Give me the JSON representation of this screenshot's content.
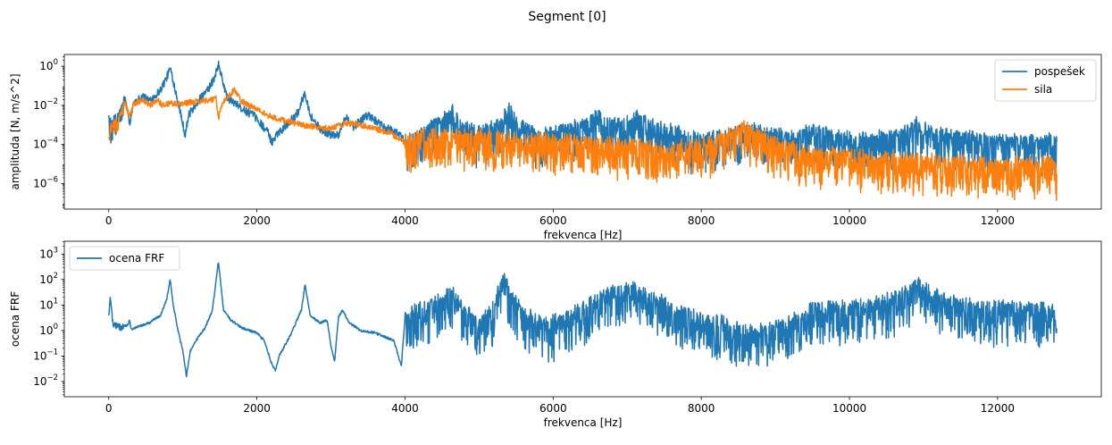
{
  "figure": {
    "suptitle": "Segment [0]"
  },
  "chart_data": [
    {
      "type": "line",
      "xlabel": "frekvenca [Hz]",
      "ylabel": "amplituda [N, m/s^2]",
      "yscale": "log",
      "xlim": [
        -600,
        13400
      ],
      "ylim_exponents": [
        -7.3,
        0.6
      ],
      "xticks": [
        "0",
        "2000",
        "4000",
        "6000",
        "8000",
        "10000",
        "12000"
      ],
      "xtick_values": [
        0,
        2000,
        4000,
        6000,
        8000,
        10000,
        12000
      ],
      "yticks": [
        {
          "base": "10",
          "exp": "0",
          "value_exp": 0
        },
        {
          "base": "10",
          "exp": "−2",
          "value_exp": -2
        },
        {
          "base": "10",
          "exp": "−4",
          "value_exp": -4
        },
        {
          "base": "10",
          "exp": "−6",
          "value_exp": -6
        }
      ],
      "legend_position": "upper right",
      "grid": false,
      "series": [
        {
          "name": "pospešek",
          "color": "#1f77b4",
          "noise_dec": [
            0.7,
            1.2
          ],
          "envelope": [
            [
              0,
              -2.5
            ],
            [
              30,
              -2.9
            ],
            [
              100,
              -2.6
            ],
            [
              160,
              -2.2
            ],
            [
              220,
              -1.6
            ],
            [
              280,
              -2.9
            ],
            [
              340,
              -1.8
            ],
            [
              400,
              -1.7
            ],
            [
              470,
              -1.5
            ],
            [
              520,
              -1.75
            ],
            [
              600,
              -1.6
            ],
            [
              700,
              -1.2
            ],
            [
              780,
              -0.6
            ],
            [
              830,
              -0.1
            ],
            [
              880,
              -0.9
            ],
            [
              960,
              -2.2
            ],
            [
              1030,
              -3.5
            ],
            [
              1080,
              -2.5
            ],
            [
              1200,
              -1.8
            ],
            [
              1320,
              -1.3
            ],
            [
              1420,
              -0.7
            ],
            [
              1480,
              0.1
            ],
            [
              1540,
              -0.8
            ],
            [
              1600,
              -1.6
            ],
            [
              1700,
              -1.9
            ],
            [
              1850,
              -2.3
            ],
            [
              1950,
              -2.5
            ],
            [
              2050,
              -2.9
            ],
            [
              2150,
              -3.4
            ],
            [
              2200,
              -3.9
            ],
            [
              2260,
              -3.5
            ],
            [
              2400,
              -3.0
            ],
            [
              2550,
              -2.4
            ],
            [
              2650,
              -1.3
            ],
            [
              2720,
              -2.5
            ],
            [
              2850,
              -3.2
            ],
            [
              3000,
              -3.5
            ],
            [
              3100,
              -3.5
            ],
            [
              3200,
              -2.6
            ],
            [
              3300,
              -3.1
            ],
            [
              3500,
              -2.5
            ],
            [
              3700,
              -3.1
            ],
            [
              3900,
              -3.4
            ],
            [
              4000,
              -3.9
            ],
            [
              4200,
              -3.5
            ],
            [
              4500,
              -2.8
            ],
            [
              4650,
              -2.3
            ],
            [
              4800,
              -3.0
            ],
            [
              5000,
              -3.4
            ],
            [
              5300,
              -2.9
            ],
            [
              5400,
              -2.2
            ],
            [
              5500,
              -2.9
            ],
            [
              5800,
              -3.6
            ],
            [
              6100,
              -3.3
            ],
            [
              6400,
              -3.0
            ],
            [
              6600,
              -2.6
            ],
            [
              6800,
              -3.0
            ],
            [
              7000,
              -2.8
            ],
            [
              7150,
              -2.6
            ],
            [
              7300,
              -3.0
            ],
            [
              7600,
              -3.3
            ],
            [
              7900,
              -3.7
            ],
            [
              8200,
              -3.6
            ],
            [
              8500,
              -3.4
            ],
            [
              8650,
              -3.1
            ],
            [
              8800,
              -3.4
            ],
            [
              9100,
              -3.5
            ],
            [
              9300,
              -3.5
            ],
            [
              9500,
              -3.3
            ],
            [
              9700,
              -3.4
            ],
            [
              10000,
              -3.7
            ],
            [
              10300,
              -3.7
            ],
            [
              10600,
              -3.5
            ],
            [
              10800,
              -3.3
            ],
            [
              10900,
              -2.9
            ],
            [
              11000,
              -3.2
            ],
            [
              11300,
              -3.5
            ],
            [
              11700,
              -3.7
            ],
            [
              12100,
              -3.8
            ],
            [
              12500,
              -3.8
            ],
            [
              12800,
              -3.8
            ]
          ]
        },
        {
          "name": "sila",
          "color": "#ff7f0e",
          "noise_dec": [
            0.5,
            1.2
          ],
          "envelope": [
            [
              0,
              -3.5
            ],
            [
              30,
              -3.0
            ],
            [
              100,
              -2.8
            ],
            [
              160,
              -2.5
            ],
            [
              220,
              -1.8
            ],
            [
              280,
              -2.6
            ],
            [
              340,
              -1.9
            ],
            [
              400,
              -1.8
            ],
            [
              470,
              -1.75
            ],
            [
              560,
              -2.0
            ],
            [
              660,
              -1.7
            ],
            [
              720,
              -2.0
            ],
            [
              800,
              -1.9
            ],
            [
              900,
              -1.9
            ],
            [
              1000,
              -1.9
            ],
            [
              1100,
              -1.85
            ],
            [
              1200,
              -1.8
            ],
            [
              1300,
              -1.75
            ],
            [
              1400,
              -1.7
            ],
            [
              1450,
              -1.6
            ],
            [
              1480,
              -2.7
            ],
            [
              1540,
              -1.8
            ],
            [
              1600,
              -1.6
            ],
            [
              1700,
              -1.2
            ],
            [
              1750,
              -1.5
            ],
            [
              1800,
              -1.8
            ],
            [
              1900,
              -2.0
            ],
            [
              2000,
              -2.2
            ],
            [
              2200,
              -2.6
            ],
            [
              2400,
              -2.8
            ],
            [
              2600,
              -3.0
            ],
            [
              2800,
              -3.1
            ],
            [
              3000,
              -3.2
            ],
            [
              3200,
              -2.9
            ],
            [
              3400,
              -3.0
            ],
            [
              3600,
              -3.2
            ],
            [
              3800,
              -3.4
            ],
            [
              4000,
              -3.9
            ],
            [
              4200,
              -3.5
            ],
            [
              5000,
              -3.6
            ],
            [
              6000,
              -3.8
            ],
            [
              7000,
              -4.0
            ],
            [
              7500,
              -4.2
            ],
            [
              8000,
              -4.0
            ],
            [
              8400,
              -3.5
            ],
            [
              8600,
              -3.1
            ],
            [
              8800,
              -3.6
            ],
            [
              9100,
              -4.1
            ],
            [
              9500,
              -4.4
            ],
            [
              10000,
              -4.6
            ],
            [
              11000,
              -4.8
            ],
            [
              12000,
              -5.0
            ],
            [
              12800,
              -5.0
            ]
          ]
        }
      ]
    },
    {
      "type": "line",
      "xlabel": "frekvenca [Hz]",
      "ylabel": "ocena FRF",
      "yscale": "log",
      "xlim": [
        -600,
        13400
      ],
      "ylim_exponents": [
        -2.6,
        3.5
      ],
      "xticks": [
        "0",
        "2000",
        "4000",
        "6000",
        "8000",
        "10000",
        "12000"
      ],
      "xtick_values": [
        0,
        2000,
        4000,
        6000,
        8000,
        10000,
        12000
      ],
      "yticks": [
        {
          "base": "10",
          "exp": "3",
          "value_exp": 3
        },
        {
          "base": "10",
          "exp": "2",
          "value_exp": 2
        },
        {
          "base": "10",
          "exp": "1",
          "value_exp": 1
        },
        {
          "base": "10",
          "exp": "0",
          "value_exp": 0
        },
        {
          "base": "10",
          "exp": "−1",
          "value_exp": -1
        },
        {
          "base": "10",
          "exp": "−2",
          "value_exp": -2
        }
      ],
      "legend_position": "upper left",
      "grid": false,
      "series": [
        {
          "name": "ocena FRF",
          "color": "#1f77b4",
          "noise_dec": [
            0.15,
            1.0
          ],
          "envelope": [
            [
              0,
              0.6
            ],
            [
              20,
              1.3
            ],
            [
              60,
              0.3
            ],
            [
              120,
              0.25
            ],
            [
              200,
              0.2
            ],
            [
              260,
              0.2
            ],
            [
              280,
              0.45
            ],
            [
              300,
              0.05
            ],
            [
              400,
              0.15
            ],
            [
              550,
              0.3
            ],
            [
              700,
              0.6
            ],
            [
              780,
              1.2
            ],
            [
              830,
              2.0
            ],
            [
              870,
              1.0
            ],
            [
              950,
              -0.2
            ],
            [
              1000,
              -0.8
            ],
            [
              1050,
              -1.8
            ],
            [
              1100,
              -0.8
            ],
            [
              1200,
              -0.3
            ],
            [
              1300,
              0.1
            ],
            [
              1400,
              0.8
            ],
            [
              1480,
              2.7
            ],
            [
              1550,
              0.8
            ],
            [
              1650,
              0.4
            ],
            [
              1800,
              0.1
            ],
            [
              2000,
              -0.1
            ],
            [
              2100,
              -0.4
            ],
            [
              2200,
              -1.3
            ],
            [
              2250,
              -1.6
            ],
            [
              2300,
              -1.0
            ],
            [
              2450,
              -0.2
            ],
            [
              2600,
              0.8
            ],
            [
              2650,
              1.8
            ],
            [
              2720,
              0.6
            ],
            [
              2850,
              0.3
            ],
            [
              2950,
              0.4
            ],
            [
              3000,
              -0.6
            ],
            [
              3050,
              -1.2
            ],
            [
              3100,
              0.5
            ],
            [
              3150,
              0.8
            ],
            [
              3250,
              0.3
            ],
            [
              3400,
              0.0
            ],
            [
              3600,
              -0.1
            ],
            [
              3850,
              -0.4
            ],
            [
              3950,
              -1.4
            ],
            [
              4000,
              0.5
            ],
            [
              4300,
              1.0
            ],
            [
              4500,
              1.2
            ],
            [
              4650,
              1.5
            ],
            [
              4800,
              0.8
            ],
            [
              5000,
              0.2
            ],
            [
              5200,
              1.0
            ],
            [
              5350,
              2.2
            ],
            [
              5400,
              1.5
            ],
            [
              5600,
              0.7
            ],
            [
              5900,
              0.2
            ],
            [
              6200,
              0.5
            ],
            [
              6500,
              1.0
            ],
            [
              6800,
              1.5
            ],
            [
              7100,
              1.7
            ],
            [
              7400,
              1.2
            ],
            [
              7700,
              0.7
            ],
            [
              8000,
              0.5
            ],
            [
              8300,
              0.3
            ],
            [
              8600,
              -0.1
            ],
            [
              8900,
              0.0
            ],
            [
              9200,
              0.3
            ],
            [
              9500,
              0.8
            ],
            [
              9800,
              0.9
            ],
            [
              10100,
              0.9
            ],
            [
              10400,
              1.1
            ],
            [
              10700,
              1.3
            ],
            [
              10900,
              1.9
            ],
            [
              11100,
              1.4
            ],
            [
              11500,
              1.0
            ],
            [
              12000,
              0.9
            ],
            [
              12500,
              0.8
            ],
            [
              12800,
              0.8
            ]
          ]
        }
      ]
    }
  ]
}
